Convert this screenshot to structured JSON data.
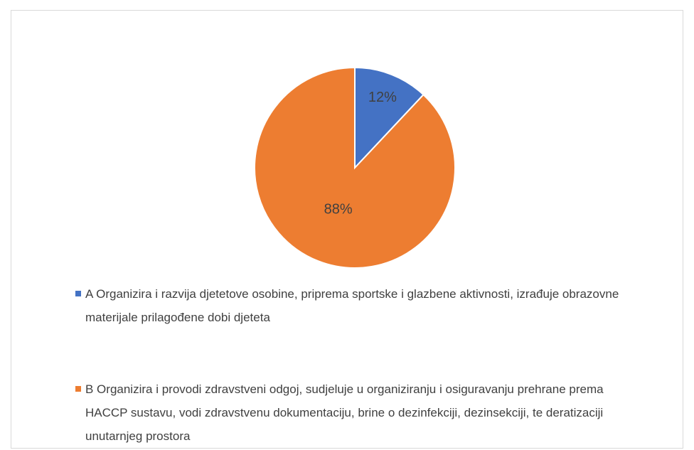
{
  "chart_data": {
    "type": "pie",
    "series": [
      {
        "name": "A Organizira i razvija djetetove osobine, priprema sportske i glazbene aktivnosti, izrađuje obrazovne materijale prilagođene dobi djeteta",
        "color": "#4472c4"
      },
      {
        "name": "B Organizira i provodi zdravstveni odgoj, sudjeluje u organiziranju i osiguravanju prehrane prema HACCP sustavu, vodi zdravstvenu dokumentaciju, brine o dezinfekciji, dezinsekciji, te deratizaciji unutarnjeg prostora",
        "color": "#ed7d31"
      }
    ],
    "values": [
      12,
      88
    ],
    "value_labels": [
      "12%",
      "88%"
    ],
    "legend": "bottom"
  }
}
